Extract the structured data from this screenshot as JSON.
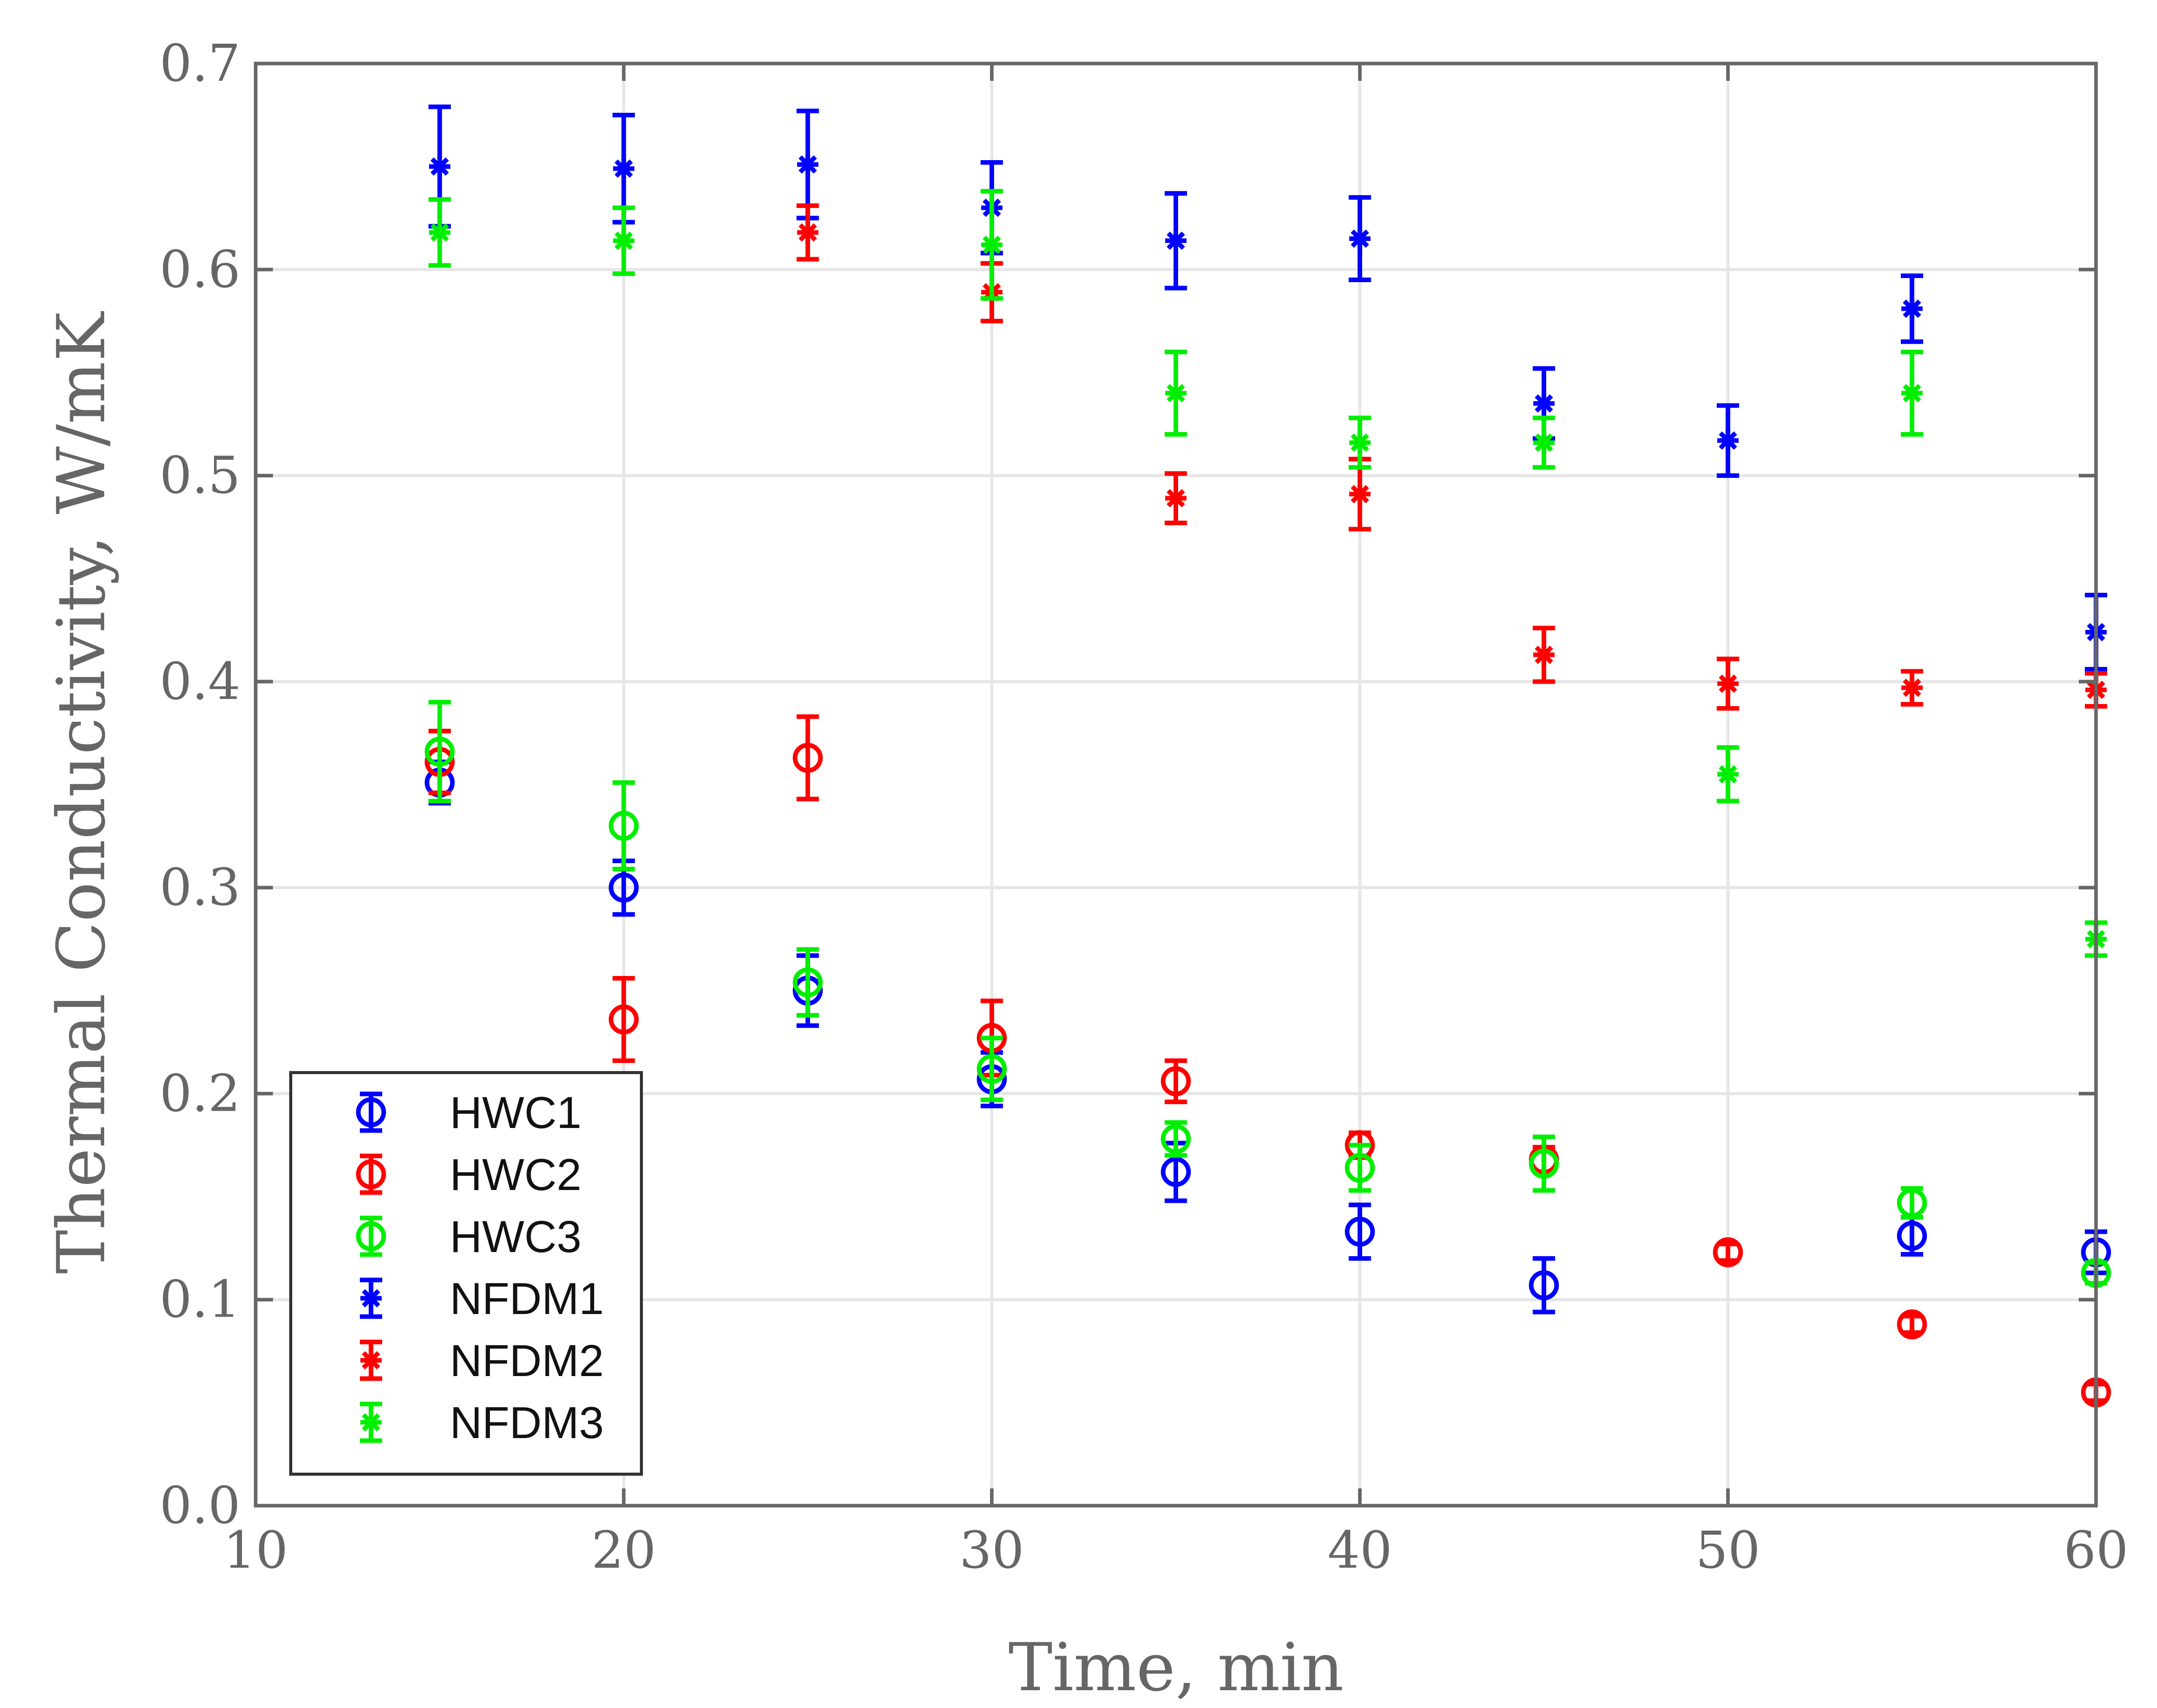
{
  "chart_data": {
    "type": "scatter",
    "title": "",
    "xlabel": "Time, min",
    "ylabel": "Thermal Conductivity, W/mK",
    "xlim": [
      10,
      60
    ],
    "ylim": [
      0.0,
      0.7
    ],
    "xticks": [
      "10",
      "20",
      "30",
      "40",
      "50",
      "60"
    ],
    "yticks": [
      "0.0",
      "0.1",
      "0.2",
      "0.3",
      "0.4",
      "0.5",
      "0.6",
      "0.7"
    ],
    "grid": true,
    "legend_position": "bottom-left",
    "series": [
      {
        "name": "HWC1",
        "marker": "circle",
        "color": "#0000ff",
        "x": [
          15,
          20,
          25,
          30,
          35,
          40,
          45,
          55,
          60
        ],
        "y": [
          0.351,
          0.3,
          0.25,
          0.207,
          0.162,
          0.133,
          0.107,
          0.131,
          0.123
        ],
        "err": [
          0.01,
          0.013,
          0.017,
          0.013,
          0.014,
          0.013,
          0.013,
          0.009,
          0.01
        ]
      },
      {
        "name": "HWC2",
        "marker": "circle",
        "color": "#ff0000",
        "x": [
          15,
          20,
          25,
          30,
          35,
          40,
          45,
          50,
          55,
          60
        ],
        "y": [
          0.361,
          0.236,
          0.363,
          0.227,
          0.206,
          0.175,
          0.168,
          0.123,
          0.088,
          0.055
        ],
        "err": [
          0.015,
          0.02,
          0.02,
          0.018,
          0.01,
          0.006,
          0.006,
          0.004,
          0.004,
          0.004
        ]
      },
      {
        "name": "HWC3",
        "marker": "circle",
        "color": "#00ee00",
        "x": [
          15,
          20,
          25,
          30,
          35,
          40,
          45,
          55,
          60
        ],
        "y": [
          0.366,
          0.33,
          0.254,
          0.212,
          0.178,
          0.164,
          0.166,
          0.147,
          0.113
        ],
        "err": [
          0.024,
          0.021,
          0.016,
          0.015,
          0.008,
          0.011,
          0.013,
          0.007,
          0.005
        ]
      },
      {
        "name": "NFDM1",
        "marker": "asterisk",
        "color": "#0000ff",
        "x": [
          15,
          20,
          25,
          30,
          35,
          40,
          45,
          50,
          55,
          60
        ],
        "y": [
          0.65,
          0.649,
          0.651,
          0.63,
          0.614,
          0.615,
          0.535,
          0.517,
          0.581,
          0.424
        ],
        "err": [
          0.029,
          0.026,
          0.026,
          0.022,
          0.023,
          0.02,
          0.017,
          0.017,
          0.016,
          0.018
        ]
      },
      {
        "name": "NFDM2",
        "marker": "asterisk",
        "color": "#ff0000",
        "x": [
          25,
          30,
          35,
          40,
          45,
          50,
          55,
          60
        ],
        "y": [
          0.618,
          0.589,
          0.489,
          0.491,
          0.413,
          0.399,
          0.397,
          0.396
        ],
        "err": [
          0.013,
          0.014,
          0.012,
          0.017,
          0.013,
          0.012,
          0.008,
          0.008
        ]
      },
      {
        "name": "NFDM3",
        "marker": "asterisk",
        "color": "#00ee00",
        "x": [
          15,
          20,
          30,
          35,
          40,
          45,
          50,
          55,
          60
        ],
        "y": [
          0.618,
          0.614,
          0.612,
          0.54,
          0.516,
          0.516,
          0.355,
          0.54,
          0.275
        ],
        "err": [
          0.016,
          0.016,
          0.026,
          0.02,
          0.012,
          0.012,
          0.013,
          0.02,
          0.008
        ]
      }
    ]
  },
  "colors": {
    "axis": "#666666",
    "grid": "#e6e6e6",
    "legend_border": "#333333"
  }
}
